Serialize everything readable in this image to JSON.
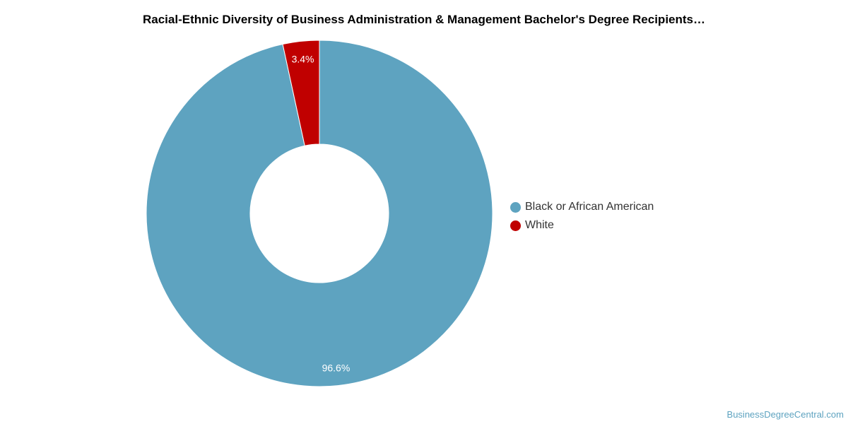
{
  "chart_data": {
    "type": "pie",
    "title": "Racial-Ethnic Diversity of Business Administration & Management Bachelor's Degree Recipients…",
    "legend_position": "right",
    "categories": [
      "Black or African American",
      "White"
    ],
    "values": [
      96.6,
      3.4
    ],
    "labels": [
      "96.6%",
      "3.4%"
    ],
    "colors": [
      "#5ea3c0",
      "#c00000"
    ],
    "donut": true
  },
  "source": "BusinessDegreeCentral.com"
}
